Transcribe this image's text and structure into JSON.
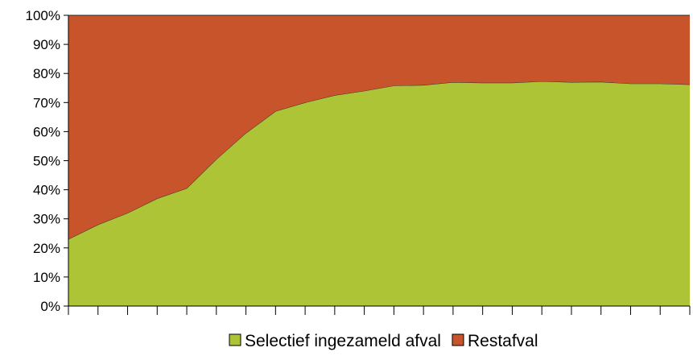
{
  "chart_data": {
    "type": "area",
    "stacked": "percent",
    "x": [
      1,
      2,
      3,
      4,
      5,
      6,
      7,
      8,
      9,
      10,
      11,
      12,
      13,
      14,
      15,
      16,
      17,
      18,
      19,
      20,
      21,
      22
    ],
    "series": [
      {
        "name": "Selectief ingezameld afval",
        "color": "#adc437",
        "values": [
          23,
          28,
          32,
          37,
          40.5,
          50.5,
          59.5,
          67,
          70,
          72.5,
          74,
          75.8,
          76,
          77,
          76.8,
          76.8,
          77.3,
          77,
          77.1,
          76.5,
          76.5,
          76.2
        ]
      },
      {
        "name": "Restafval",
        "color": "#c8542c",
        "values": [
          77,
          72,
          68,
          63,
          59.5,
          49.5,
          40.5,
          33,
          30,
          27.5,
          26,
          24.2,
          24,
          23,
          23.2,
          23.2,
          22.7,
          23,
          22.9,
          23.5,
          23.5,
          23.8
        ]
      }
    ],
    "yticks": [
      "0%",
      "10%",
      "20%",
      "30%",
      "40%",
      "50%",
      "60%",
      "70%",
      "80%",
      "90%",
      "100%"
    ],
    "ylim": [
      0,
      100
    ],
    "grid": false,
    "legend": "bottom"
  }
}
